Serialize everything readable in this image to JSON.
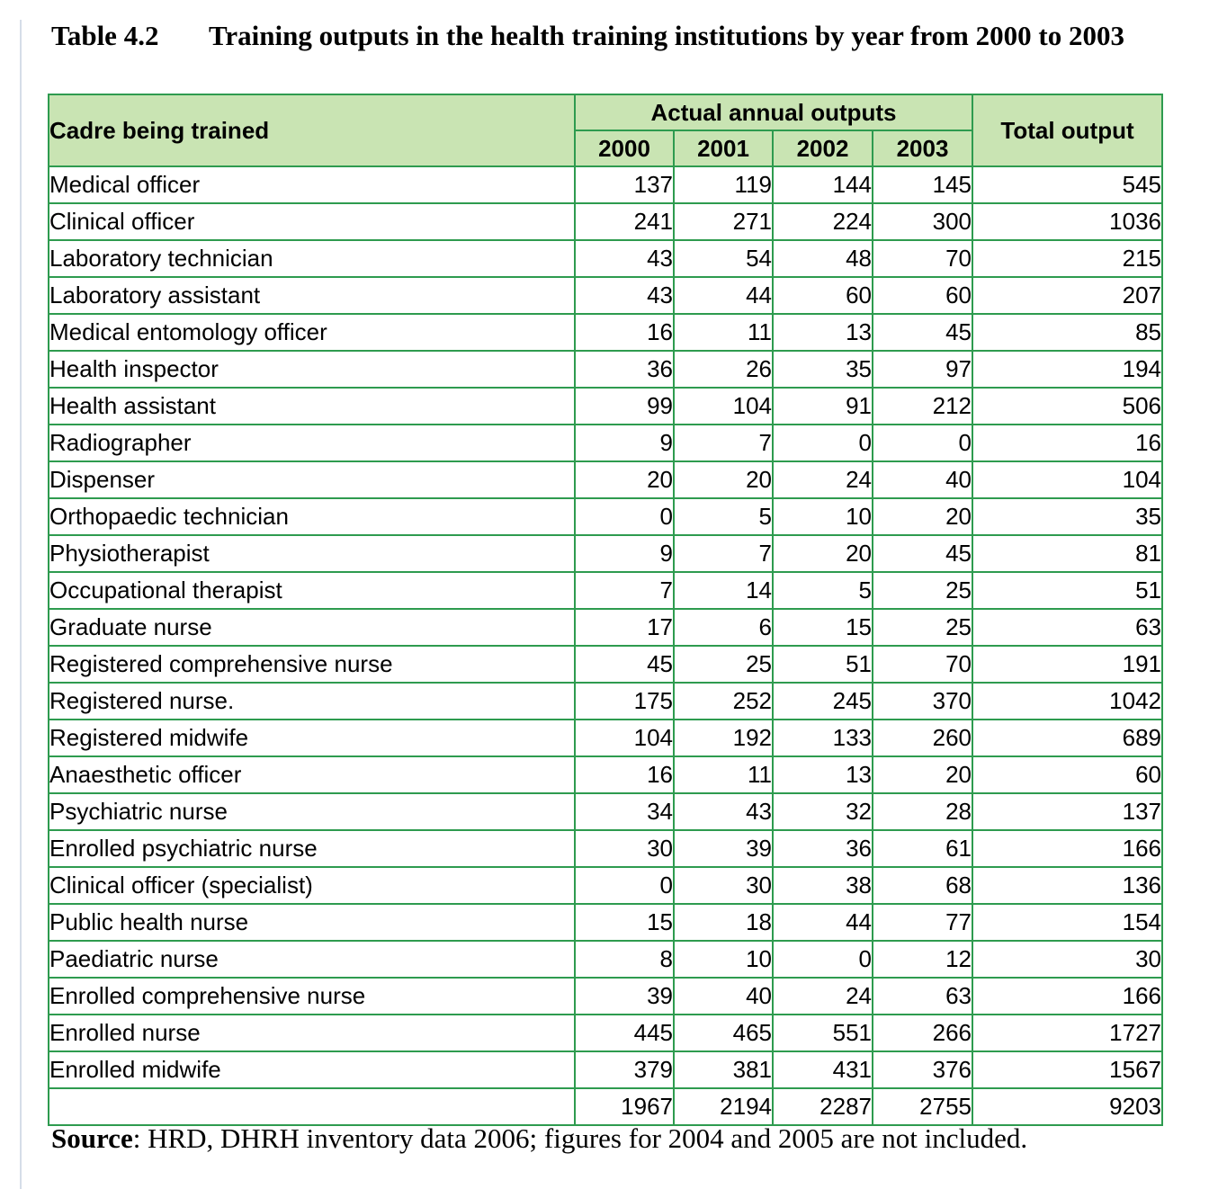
{
  "caption": {
    "number": "Table 4.2",
    "title": "Training outputs in the health training institutions by year from 2000 to 2003"
  },
  "table": {
    "header": {
      "cadre": "Cadre being trained",
      "group": "Actual annual outputs",
      "years": [
        "2000",
        "2001",
        "2002",
        "2003"
      ],
      "total": "Total output"
    },
    "rows": [
      {
        "name": "Medical officer",
        "values": [
          "137",
          "119",
          "144",
          "145"
        ],
        "total": "545"
      },
      {
        "name": "Clinical officer",
        "values": [
          "241",
          "271",
          "224",
          "300"
        ],
        "total": "1036"
      },
      {
        "name": "Laboratory technician",
        "values": [
          "43",
          "54",
          "48",
          "70"
        ],
        "total": "215"
      },
      {
        "name": "Laboratory assistant",
        "values": [
          "43",
          "44",
          "60",
          "60"
        ],
        "total": "207"
      },
      {
        "name": "Medical entomology officer",
        "values": [
          "16",
          "11",
          "13",
          "45"
        ],
        "total": "85"
      },
      {
        "name": "Health inspector",
        "values": [
          "36",
          "26",
          "35",
          "97"
        ],
        "total": "194"
      },
      {
        "name": "Health assistant",
        "values": [
          "99",
          "104",
          "91",
          "212"
        ],
        "total": "506"
      },
      {
        "name": "Radiographer",
        "values": [
          "9",
          "7",
          "0",
          "0"
        ],
        "total": "16"
      },
      {
        "name": "Dispenser",
        "values": [
          "20",
          "20",
          "24",
          "40"
        ],
        "total": "104"
      },
      {
        "name": "Orthopaedic technician",
        "values": [
          "0",
          "5",
          "10",
          "20"
        ],
        "total": "35"
      },
      {
        "name": "Physiotherapist",
        "values": [
          "9",
          "7",
          "20",
          "45"
        ],
        "total": "81"
      },
      {
        "name": "Occupational therapist",
        "values": [
          "7",
          "14",
          "5",
          "25"
        ],
        "total": "51"
      },
      {
        "name": "Graduate nurse",
        "values": [
          "17",
          "6",
          "15",
          "25"
        ],
        "total": "63"
      },
      {
        "name": "Registered comprehensive nurse",
        "values": [
          "45",
          "25",
          "51",
          "70"
        ],
        "total": "191"
      },
      {
        "name": "Registered nurse.",
        "values": [
          "175",
          "252",
          "245",
          "370"
        ],
        "total": "1042"
      },
      {
        "name": "Registered midwife",
        "values": [
          "104",
          "192",
          "133",
          "260"
        ],
        "total": "689"
      },
      {
        "name": "Anaesthetic officer",
        "values": [
          "16",
          "11",
          "13",
          "20"
        ],
        "total": "60"
      },
      {
        "name": "Psychiatric nurse",
        "values": [
          "34",
          "43",
          "32",
          "28"
        ],
        "total": "137"
      },
      {
        "name": "Enrolled psychiatric nurse",
        "values": [
          "30",
          "39",
          "36",
          "61"
        ],
        "total": "166"
      },
      {
        "name": "Clinical officer (specialist)",
        "values": [
          "0",
          "30",
          "38",
          "68"
        ],
        "total": "136"
      },
      {
        "name": "Public health nurse",
        "values": [
          "15",
          "18",
          "44",
          "77"
        ],
        "total": "154"
      },
      {
        "name": "Paediatric nurse",
        "values": [
          "8",
          "10",
          "0",
          "12"
        ],
        "total": "30"
      },
      {
        "name": "Enrolled comprehensive nurse",
        "values": [
          "39",
          "40",
          "24",
          "63"
        ],
        "total": "166"
      },
      {
        "name": "Enrolled nurse",
        "values": [
          "445",
          "465",
          "551",
          "266"
        ],
        "total": "1727"
      },
      {
        "name": "Enrolled midwife",
        "values": [
          "379",
          "381",
          "431",
          "376"
        ],
        "total": "1567"
      },
      {
        "name": "",
        "values": [
          "1967",
          "2194",
          "2287",
          "2755"
        ],
        "total": "9203"
      }
    ]
  },
  "source": {
    "label": "Source",
    "text": ": HRD, DHRH inventory data 2006; figures for 2004 and 2005 are not included."
  },
  "colors": {
    "border": "#2e9b4f",
    "header_fill": "#c9e4b3"
  }
}
